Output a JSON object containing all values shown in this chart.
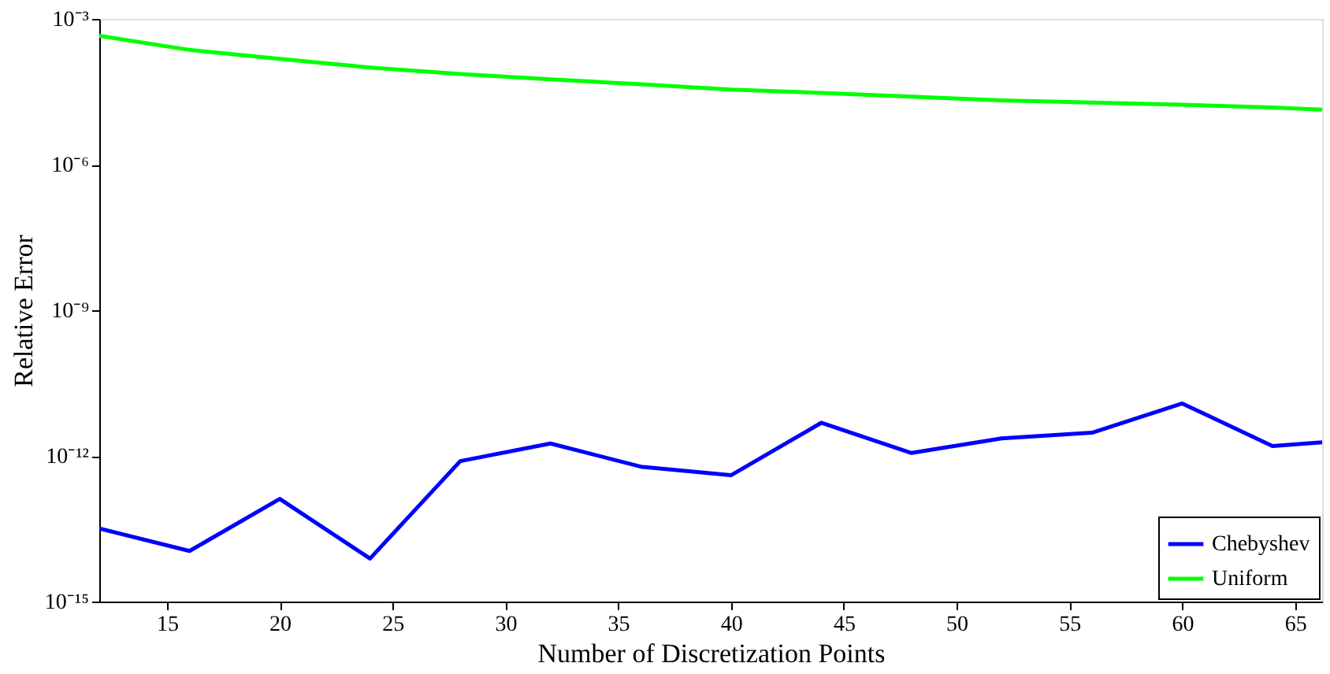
{
  "chart_data": {
    "type": "line",
    "xlabel": "Number of Discretization Points",
    "ylabel": "Relative Error",
    "log": "y",
    "grid": false,
    "legend": "bottom right",
    "line_style": "solid",
    "marker": "none",
    "xlim": [
      12,
      66.2
    ],
    "xticks": [
      15,
      20,
      25,
      30,
      35,
      40,
      45,
      50,
      55,
      60,
      65
    ],
    "ylim": [
      1e-15,
      0.001
    ],
    "yticks": [
      {
        "value": 1e-15,
        "label": "10⁻¹⁵"
      },
      {
        "value": 1e-12,
        "label": "10⁻¹²"
      },
      {
        "value": 1e-09,
        "label": "10⁻⁹"
      },
      {
        "value": 1e-06,
        "label": "10⁻⁶"
      },
      {
        "value": 0.001,
        "label": "10⁻³"
      }
    ],
    "x": [
      12,
      16,
      20,
      24,
      28,
      32,
      36,
      40,
      44,
      48,
      52,
      56,
      60,
      64,
      66.2
    ],
    "series": [
      {
        "name": "Chebyshev",
        "color": "#0000ff",
        "values": [
          3.2e-14,
          1.1e-14,
          1.3e-13,
          7.7e-15,
          7.8e-13,
          1.8e-12,
          6e-13,
          4e-13,
          4.8e-12,
          1.15e-12,
          2.3e-12,
          3e-12,
          1.2e-11,
          1.6e-12,
          1.9e-12
        ]
      },
      {
        "name": "Uniform",
        "color": "#00ff00",
        "values": [
          0.00045,
          0.00023,
          0.00015,
          0.0001,
          7.3e-05,
          5.7e-05,
          4.5e-05,
          3.5e-05,
          3e-05,
          2.5e-05,
          2.1e-05,
          1.9e-05,
          1.7e-05,
          1.5e-05,
          1.35e-05
        ]
      }
    ]
  }
}
